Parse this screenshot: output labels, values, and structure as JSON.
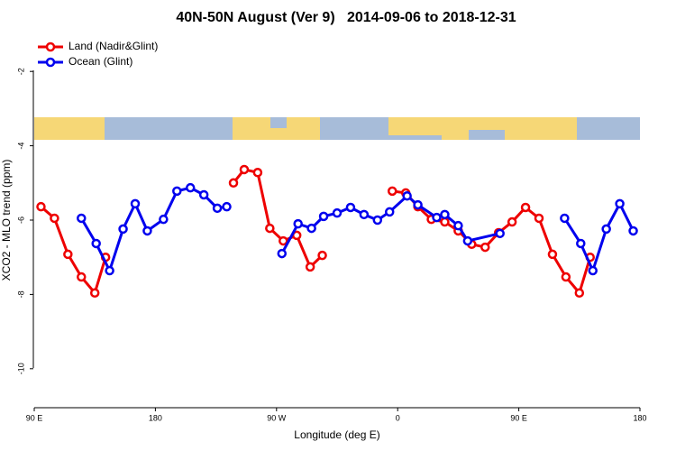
{
  "chart_data": {
    "type": "line",
    "title": "40N-50N August (Ver 9)   2014-09-06 to 2018-12-31",
    "x_label": "Longitude (deg E)",
    "y_label": "XCO2 - MLO trend (ppm)",
    "xlim": [
      90,
      540
    ],
    "xticks": [
      {
        "value": 90,
        "label": "90 E"
      },
      180,
      {
        "value": 270,
        "label": "90 W"
      },
      {
        "value": 360,
        "label": "0"
      },
      {
        "value": 450,
        "label": "90 E"
      },
      {
        "value": 540,
        "label": "180"
      }
    ],
    "ylim": [
      -11,
      -1
    ],
    "yticks": [
      -2,
      -4,
      -6,
      -8,
      -10
    ],
    "legend": "top-left",
    "series": [
      {
        "name": "Land (Nadir&Glint)",
        "color": "#ee0000",
        "x": [
          95,
          105,
          115,
          125,
          135,
          143,
          null,
          238,
          246,
          256,
          265,
          275,
          285,
          295,
          304,
          null,
          356,
          366,
          375,
          385,
          395,
          405,
          415,
          425,
          435,
          445,
          455,
          465,
          475,
          485,
          495,
          503
        ],
        "values": [
          -5.64,
          -5.95,
          -6.92,
          -7.53,
          -7.96,
          -7.0,
          null,
          -5.0,
          -4.64,
          -4.72,
          -6.22,
          -6.56,
          -6.41,
          -7.26,
          -6.95,
          null,
          -5.22,
          -5.27,
          -5.64,
          -5.98,
          -6.05,
          -6.29,
          -6.65,
          -6.73,
          -6.34,
          -6.05,
          -5.66,
          -5.95,
          -6.92,
          -7.53,
          -7.96,
          -7.0
        ]
      },
      {
        "name": "Ocean (Glint)",
        "color": "#0000ee",
        "x": [
          125,
          136,
          146,
          156,
          165,
          174,
          186,
          196,
          206,
          216,
          226,
          233,
          null,
          274,
          286,
          296,
          305,
          315,
          325,
          335,
          345,
          354,
          367,
          375,
          389,
          395,
          405,
          412,
          436,
          null,
          484,
          496,
          505,
          515,
          525,
          535
        ],
        "values": [
          -5.95,
          -6.63,
          -7.36,
          -6.24,
          -5.56,
          -6.29,
          -5.98,
          -5.22,
          -5.13,
          -5.32,
          -5.68,
          -5.64,
          null,
          -6.9,
          -6.1,
          -6.22,
          -5.9,
          -5.81,
          -5.66,
          -5.85,
          -6.0,
          -5.78,
          -5.35,
          -5.59,
          -5.93,
          -5.85,
          -6.15,
          -6.56,
          -6.36,
          null,
          -5.95,
          -6.63,
          -7.36,
          -6.24,
          -5.56,
          -6.29
        ]
      }
    ]
  }
}
